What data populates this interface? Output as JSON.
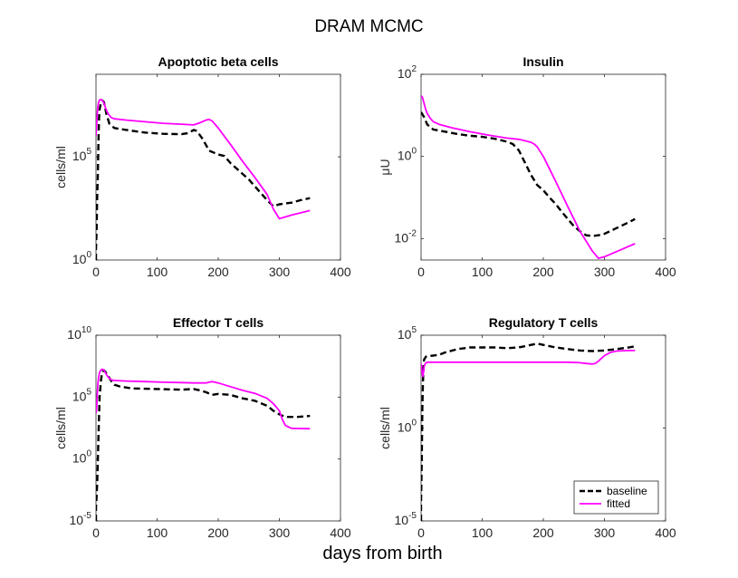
{
  "figure": {
    "title": "DRAM MCMC",
    "xlabel": "days from birth"
  },
  "colors": {
    "baseline": "#000000",
    "fitted": "#ff00ff"
  },
  "chart_data": [
    {
      "type": "line",
      "title": "Apoptotic beta cells",
      "xlabel": "",
      "ylabel": "cells/ml",
      "yscale": "log",
      "xlim": [
        0,
        400
      ],
      "ylim": [
        1,
        1000000000
      ],
      "xticks": [
        0,
        100,
        200,
        300,
        400
      ],
      "yticks": [
        {
          "v": 1,
          "m": "10",
          "e": "0"
        },
        {
          "v": 100000,
          "m": "10",
          "e": "5"
        }
      ],
      "grid": false,
      "series": [
        {
          "name": "baseline",
          "style": "dashed",
          "x": [
            0,
            0,
            1,
            2,
            3,
            4,
            5,
            6,
            8,
            10,
            13,
            17,
            22,
            30,
            50,
            80,
            110,
            140,
            150,
            160,
            165,
            175,
            185,
            200,
            210,
            220,
            235,
            250,
            265,
            280,
            290,
            300,
            320,
            335,
            350
          ],
          "y": [
            1,
            3,
            30,
            1000,
            10000,
            500000,
            8000000,
            20000000,
            40000000,
            55000000,
            45000000,
            12000000,
            4000000,
            2500000,
            2000000,
            1500000,
            1300000,
            1250000,
            1400000,
            2000000,
            1800000,
            700000,
            200000,
            130000,
            110000,
            50000,
            20000,
            8000,
            2500,
            800,
            400,
            500,
            600,
            800,
            1000
          ]
        },
        {
          "name": "fitted",
          "style": "solid",
          "x": [
            0,
            1,
            2,
            3,
            4,
            5,
            6,
            8,
            10,
            13,
            16,
            20,
            25,
            30,
            50,
            80,
            110,
            140,
            160,
            170,
            180,
            185,
            190,
            200,
            220,
            240,
            260,
            280,
            290,
            300,
            320,
            350
          ],
          "y": [
            1000000,
            3000000,
            10000000,
            25000000,
            40000000,
            50000000,
            58000000,
            60000000,
            55000000,
            40000000,
            22000000,
            12000000,
            8000000,
            7000000,
            6000000,
            5000000,
            4200000,
            3800000,
            3500000,
            4500000,
            6000000,
            6500000,
            5500000,
            2500000,
            400000,
            60000,
            10000,
            1500,
            300,
            100,
            150,
            250
          ]
        }
      ]
    },
    {
      "type": "line",
      "title": "Insulin",
      "xlabel": "",
      "ylabel": "μU",
      "yscale": "log",
      "xlim": [
        0,
        400
      ],
      "ylim": [
        0.003,
        100
      ],
      "xticks": [
        0,
        100,
        200,
        300,
        400
      ],
      "yticks": [
        {
          "v": 0.01,
          "m": "10",
          "e": "-2"
        },
        {
          "v": 1,
          "m": "10",
          "e": "0"
        },
        {
          "v": 100,
          "m": "10",
          "e": "2"
        }
      ],
      "grid": false,
      "series": [
        {
          "name": "baseline",
          "style": "dashed",
          "x": [
            0,
            5,
            10,
            20,
            40,
            60,
            80,
            100,
            120,
            140,
            150,
            160,
            170,
            180,
            190,
            200,
            210,
            220,
            230,
            240,
            250,
            260,
            270,
            280,
            290,
            300,
            320,
            340,
            350
          ],
          "y": [
            12,
            9,
            6,
            4.5,
            4,
            3.5,
            3.2,
            3,
            2.7,
            2.3,
            2,
            1.4,
            0.7,
            0.35,
            0.2,
            0.15,
            0.1,
            0.07,
            0.045,
            0.03,
            0.02,
            0.015,
            0.012,
            0.0115,
            0.012,
            0.013,
            0.018,
            0.025,
            0.03
          ]
        },
        {
          "name": "fitted",
          "style": "solid",
          "x": [
            0,
            2,
            4,
            7,
            10,
            15,
            20,
            30,
            50,
            80,
            110,
            140,
            160,
            170,
            180,
            185,
            190,
            200,
            210,
            220,
            240,
            260,
            280,
            290,
            300,
            320,
            340,
            350
          ],
          "y": [
            30,
            28,
            22,
            15,
            11,
            8.5,
            7,
            6,
            5,
            4,
            3.3,
            2.8,
            2.6,
            2.4,
            2.2,
            2,
            1.7,
            1,
            0.5,
            0.25,
            0.06,
            0.015,
            0.005,
            0.0033,
            0.0036,
            0.0048,
            0.0065,
            0.0075
          ]
        }
      ]
    },
    {
      "type": "line",
      "title": "Effector T cells",
      "xlabel": "",
      "ylabel": "cells/ml",
      "yscale": "log",
      "xlim": [
        0,
        400
      ],
      "ylim": [
        1e-05,
        10000000000
      ],
      "xticks": [
        0,
        100,
        200,
        300,
        400
      ],
      "yticks": [
        {
          "v": 1e-05,
          "m": "10",
          "e": "-5"
        },
        {
          "v": 1,
          "m": "10",
          "e": "0"
        },
        {
          "v": 100000,
          "m": "10",
          "e": "5"
        },
        {
          "v": 10000000000,
          "m": "10",
          "e": "10"
        }
      ],
      "grid": false,
      "series": [
        {
          "name": "baseline",
          "style": "dashed",
          "x": [
            0,
            0,
            1,
            2,
            3,
            4,
            5,
            6,
            8,
            10,
            13,
            16,
            20,
            25,
            30,
            40,
            60,
            100,
            140,
            160,
            170,
            180,
            190,
            200,
            220,
            240,
            260,
            280,
            290,
            300,
            310,
            330,
            350
          ],
          "y": [
            1e-05,
            0.0001,
            0.001,
            0.01,
            0.5,
            50,
            3000,
            100000,
            2000000,
            10000000,
            15000000,
            10000000,
            5000000,
            2000000,
            1000000,
            700000,
            500000,
            450000,
            400000,
            450000,
            350000,
            250000,
            150000,
            180000,
            150000,
            80000,
            50000,
            20000,
            8000,
            4000,
            2500,
            2500,
            3000
          ]
        },
        {
          "name": "fitted",
          "style": "solid",
          "x": [
            0,
            1,
            2,
            3,
            4,
            5,
            6,
            8,
            10,
            13,
            16,
            20,
            25,
            30,
            50,
            80,
            110,
            140,
            160,
            180,
            185,
            190,
            200,
            220,
            240,
            260,
            280,
            290,
            300,
            305,
            310,
            320,
            350
          ],
          "y": [
            5000,
            10000,
            100000,
            1000000,
            3000000,
            6000000,
            10000000,
            15000000,
            18000000,
            15000000,
            8000000,
            4000000,
            2500000,
            2200000,
            2000000,
            1800000,
            1600000,
            1500000,
            1400000,
            1400000,
            1600000,
            1800000,
            1400000,
            700000,
            350000,
            200000,
            80000,
            30000,
            8000,
            1500,
            500,
            300,
            280
          ]
        }
      ]
    },
    {
      "type": "line",
      "title": "Regulatory T cells",
      "xlabel": "",
      "ylabel": "cells/ml",
      "yscale": "log",
      "xlim": [
        0,
        400
      ],
      "ylim": [
        1e-05,
        100000
      ],
      "xticks": [
        0,
        100,
        200,
        300,
        400
      ],
      "yticks": [
        {
          "v": 1e-05,
          "m": "10",
          "e": "-5"
        },
        {
          "v": 1,
          "m": "10",
          "e": "0"
        },
        {
          "v": 100000,
          "m": "10",
          "e": "5"
        }
      ],
      "grid": false,
      "legend": {
        "location": "bottom-right",
        "entries": [
          "baseline",
          "fitted"
        ]
      },
      "series": [
        {
          "name": "baseline",
          "style": "dashed",
          "x": [
            0,
            0,
            1,
            2,
            3,
            4,
            5,
            8,
            12,
            20,
            30,
            40,
            60,
            80,
            100,
            120,
            140,
            160,
            180,
            190,
            200,
            220,
            240,
            260,
            280,
            300,
            320,
            340,
            350
          ],
          "y": [
            1e-05,
            0.0001,
            0.01,
            10,
            200,
            2500,
            5000,
            7000,
            7500,
            8000,
            9000,
            12000,
            18000,
            22000,
            22000,
            22000,
            20000,
            22000,
            30000,
            35000,
            30000,
            22000,
            18000,
            15000,
            14000,
            15000,
            18000,
            22000,
            25000
          ]
        },
        {
          "name": "fitted",
          "style": "solid",
          "x": [
            0,
            1,
            2,
            3,
            4,
            5,
            7,
            10,
            20,
            40,
            80,
            120,
            160,
            200,
            240,
            260,
            270,
            280,
            285,
            290,
            300,
            310,
            320,
            340,
            350
          ],
          "y": [
            3000,
            1500,
            800,
            600,
            1000,
            2000,
            3000,
            3500,
            3500,
            3500,
            3500,
            3500,
            3500,
            3500,
            3500,
            3300,
            3000,
            2800,
            3000,
            4000,
            8000,
            12000,
            14000,
            15000,
            15000
          ]
        }
      ]
    }
  ]
}
